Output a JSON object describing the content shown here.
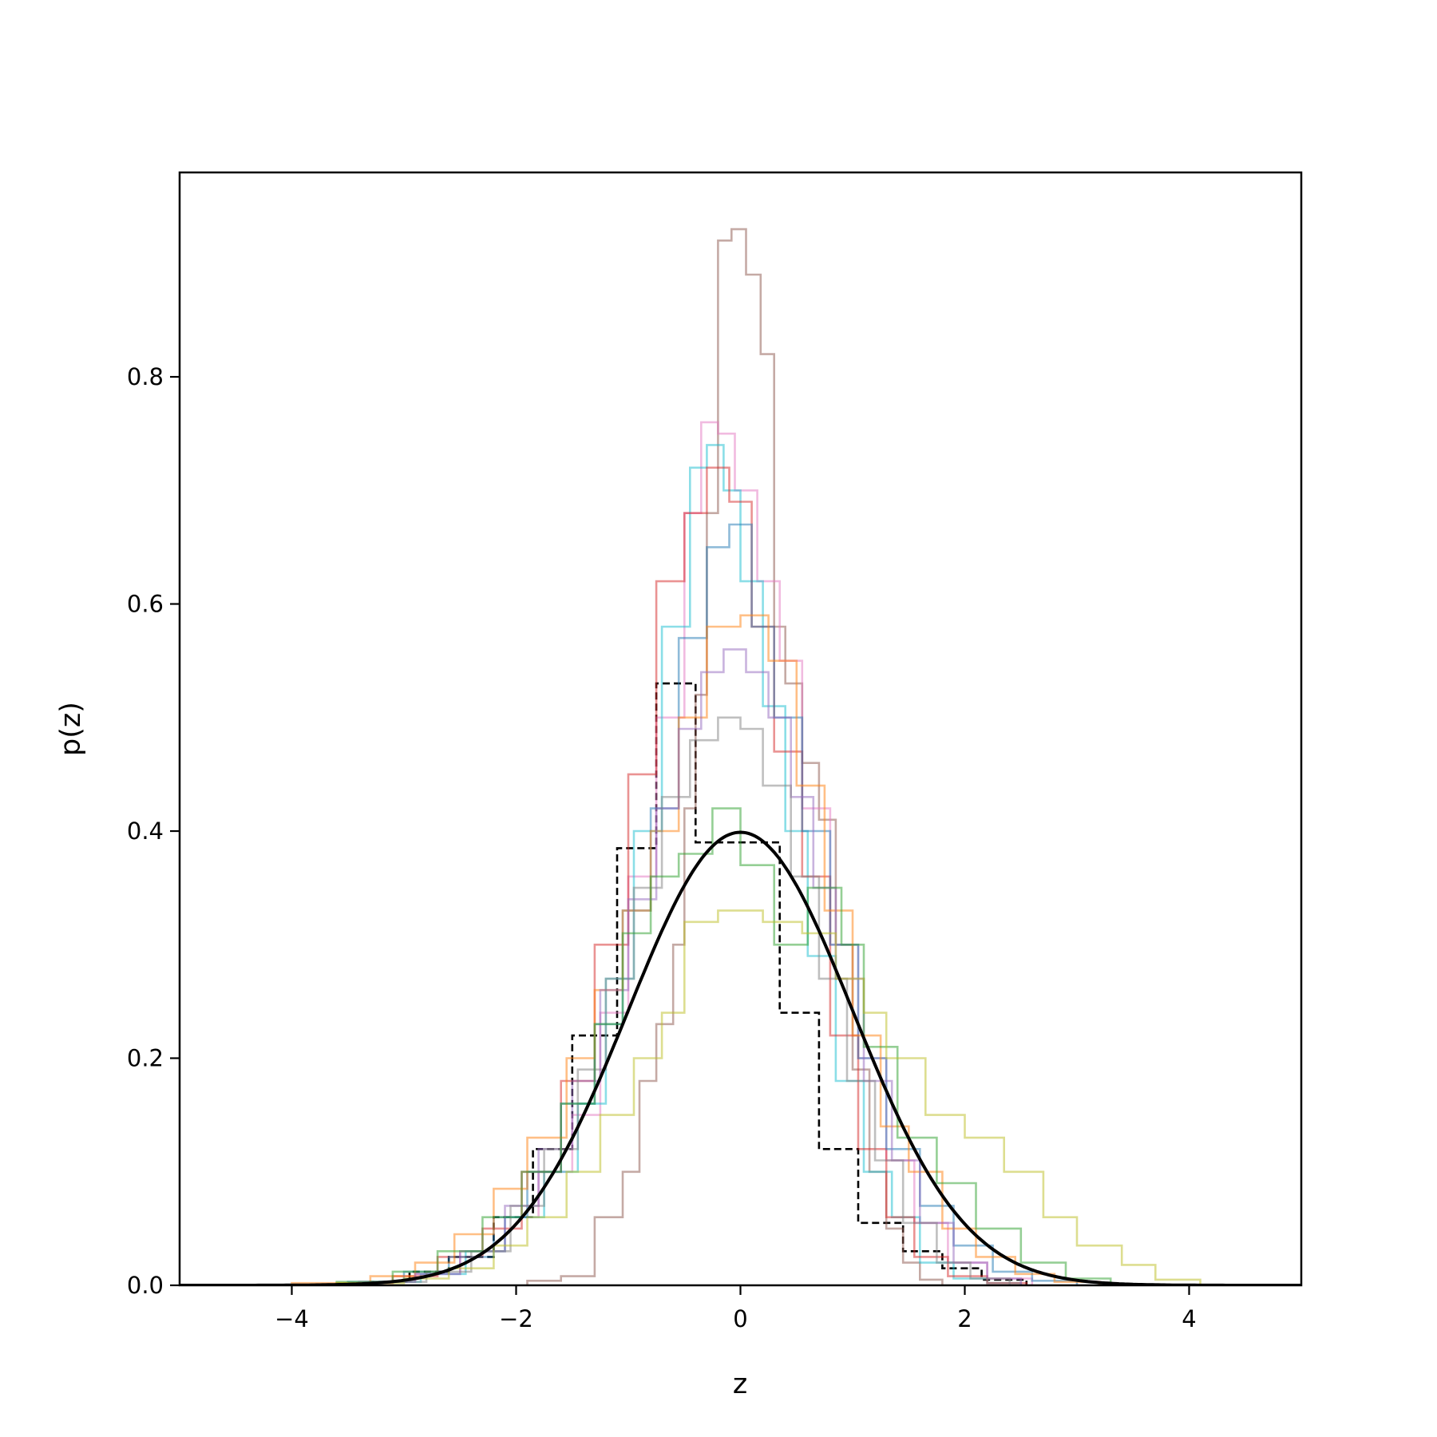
{
  "chart_data": {
    "type": "line",
    "title": "",
    "xlabel": "z",
    "ylabel": "p(z)",
    "xlim": [
      -5,
      5
    ],
    "ylim": [
      0,
      0.98
    ],
    "xticks": [
      -4,
      -2,
      0,
      2,
      4
    ],
    "xtick_labels": [
      "−4",
      "−2",
      "0",
      "2",
      "4"
    ],
    "yticks": [
      0.0,
      0.2,
      0.4,
      0.6,
      0.8
    ],
    "ytick_labels": [
      "0.0",
      "0.2",
      "0.4",
      "0.6",
      "0.8"
    ],
    "grid": false,
    "legend": "none",
    "normal_curve": {
      "mean": 0,
      "std": 1,
      "color": "#000000"
    },
    "step_series": [
      {
        "style": "dashed",
        "color": "#000000",
        "edges": [
          -3.3,
          -2.95,
          -2.6,
          -2.2,
          -1.85,
          -1.5,
          -1.1,
          -0.75,
          -0.4,
          0.35,
          0.7,
          1.05,
          1.45,
          1.8,
          2.15,
          2.55
        ],
        "values": [
          0.003,
          0.012,
          0.025,
          0.06,
          0.12,
          0.22,
          0.385,
          0.53,
          0.39,
          0.24,
          0.12,
          0.055,
          0.03,
          0.015,
          0.005
        ]
      },
      {
        "style": "solid",
        "color": "#8c564b",
        "edges": [
          -1.9,
          -1.6,
          -1.3,
          -1.05,
          -0.9,
          -0.75,
          -0.6,
          -0.5,
          -0.4,
          -0.3,
          -0.2,
          -0.08,
          0.05,
          0.18,
          0.3,
          0.4,
          0.55,
          0.7,
          0.85,
          1.0,
          1.15,
          1.3,
          1.45,
          1.6,
          1.8
        ],
        "values": [
          0.004,
          0.008,
          0.06,
          0.1,
          0.18,
          0.23,
          0.3,
          0.42,
          0.52,
          0.68,
          0.92,
          0.93,
          0.89,
          0.82,
          0.58,
          0.53,
          0.46,
          0.41,
          0.3,
          0.19,
          0.1,
          0.05,
          0.02,
          0.005
        ]
      },
      {
        "style": "solid",
        "color": "#e377c2",
        "edges": [
          -3.4,
          -2.9,
          -2.5,
          -2.1,
          -1.8,
          -1.5,
          -1.25,
          -1.0,
          -0.75,
          -0.5,
          -0.35,
          -0.2,
          -0.05,
          0.15,
          0.35,
          0.55,
          0.8,
          1.05,
          1.3,
          1.55,
          1.85,
          2.2,
          2.6
        ],
        "values": [
          0.003,
          0.01,
          0.03,
          0.06,
          0.1,
          0.15,
          0.24,
          0.36,
          0.5,
          0.68,
          0.76,
          0.75,
          0.7,
          0.62,
          0.55,
          0.42,
          0.3,
          0.2,
          0.11,
          0.055,
          0.02,
          0.006
        ]
      },
      {
        "style": "solid",
        "color": "#17becf",
        "edges": [
          -3.3,
          -2.85,
          -2.45,
          -2.1,
          -1.75,
          -1.45,
          -1.2,
          -0.95,
          -0.7,
          -0.45,
          -0.3,
          -0.15,
          0.0,
          0.2,
          0.4,
          0.6,
          0.85,
          1.1,
          1.35,
          1.6,
          1.9,
          2.2,
          2.5
        ],
        "values": [
          0.003,
          0.01,
          0.03,
          0.06,
          0.1,
          0.16,
          0.27,
          0.4,
          0.58,
          0.72,
          0.74,
          0.7,
          0.62,
          0.51,
          0.4,
          0.29,
          0.18,
          0.1,
          0.06,
          0.02,
          0.006,
          0.002
        ]
      },
      {
        "style": "solid",
        "color": "#d62728",
        "edges": [
          -3.6,
          -3.1,
          -2.7,
          -2.3,
          -1.95,
          -1.6,
          -1.3,
          -1.0,
          -0.75,
          -0.5,
          -0.3,
          -0.1,
          0.1,
          0.3,
          0.55,
          0.8,
          1.05,
          1.3,
          1.55,
          1.85,
          2.2,
          2.55
        ],
        "values": [
          0.002,
          0.008,
          0.025,
          0.05,
          0.1,
          0.18,
          0.3,
          0.45,
          0.62,
          0.68,
          0.72,
          0.69,
          0.58,
          0.47,
          0.36,
          0.22,
          0.12,
          0.06,
          0.025,
          0.008,
          0.002
        ]
      },
      {
        "style": "solid",
        "color": "#1f77b4",
        "edges": [
          -3.5,
          -3.0,
          -2.6,
          -2.2,
          -1.9,
          -1.6,
          -1.3,
          -1.05,
          -0.8,
          -0.55,
          -0.3,
          -0.1,
          0.1,
          0.3,
          0.55,
          0.8,
          1.05,
          1.3,
          1.6,
          1.9,
          2.25,
          2.6,
          3.0
        ],
        "values": [
          0.003,
          0.012,
          0.025,
          0.06,
          0.1,
          0.16,
          0.23,
          0.33,
          0.42,
          0.57,
          0.65,
          0.67,
          0.58,
          0.5,
          0.4,
          0.3,
          0.2,
          0.12,
          0.07,
          0.035,
          0.012,
          0.004
        ]
      },
      {
        "style": "solid",
        "color": "#ff7f0e",
        "edges": [
          -4.0,
          -3.3,
          -2.9,
          -2.55,
          -2.2,
          -1.9,
          -1.55,
          -1.3,
          -1.05,
          -0.8,
          -0.55,
          -0.3,
          0.0,
          0.25,
          0.5,
          0.75,
          1.0,
          1.25,
          1.5,
          1.8,
          2.1,
          2.45,
          2.8,
          3.2
        ],
        "values": [
          0.002,
          0.008,
          0.02,
          0.045,
          0.085,
          0.13,
          0.2,
          0.26,
          0.33,
          0.4,
          0.5,
          0.58,
          0.59,
          0.55,
          0.44,
          0.33,
          0.22,
          0.14,
          0.1,
          0.05,
          0.025,
          0.01,
          0.003
        ]
      },
      {
        "style": "solid",
        "color": "#9467bd",
        "edges": [
          -3.4,
          -2.9,
          -2.5,
          -2.1,
          -1.8,
          -1.5,
          -1.25,
          -1.0,
          -0.75,
          -0.55,
          -0.35,
          -0.15,
          0.05,
          0.25,
          0.45,
          0.65,
          0.85,
          1.1,
          1.35,
          1.6,
          1.9,
          2.2,
          2.5
        ],
        "values": [
          0.003,
          0.01,
          0.03,
          0.07,
          0.12,
          0.18,
          0.26,
          0.34,
          0.42,
          0.49,
          0.54,
          0.56,
          0.54,
          0.5,
          0.43,
          0.35,
          0.27,
          0.18,
          0.11,
          0.055,
          0.02,
          0.006
        ]
      },
      {
        "style": "solid",
        "color": "#7f7f7f",
        "edges": [
          -3.3,
          -2.8,
          -2.4,
          -2.05,
          -1.75,
          -1.45,
          -1.2,
          -0.95,
          -0.7,
          -0.45,
          -0.2,
          0.0,
          0.2,
          0.45,
          0.7,
          0.95,
          1.2,
          1.45,
          1.75,
          2.05,
          2.4
        ],
        "values": [
          0.003,
          0.012,
          0.03,
          0.07,
          0.12,
          0.19,
          0.27,
          0.35,
          0.43,
          0.48,
          0.5,
          0.49,
          0.44,
          0.36,
          0.27,
          0.18,
          0.11,
          0.055,
          0.02,
          0.006
        ]
      },
      {
        "style": "solid",
        "color": "#2ca02c",
        "edges": [
          -3.6,
          -3.1,
          -2.7,
          -2.3,
          -1.95,
          -1.6,
          -1.3,
          -1.05,
          -0.8,
          -0.55,
          -0.25,
          0.0,
          0.3,
          0.6,
          0.9,
          1.1,
          1.4,
          1.75,
          2.1,
          2.5,
          2.9,
          3.3
        ],
        "values": [
          0.003,
          0.012,
          0.03,
          0.06,
          0.1,
          0.16,
          0.23,
          0.31,
          0.36,
          0.38,
          0.42,
          0.37,
          0.3,
          0.35,
          0.3,
          0.21,
          0.13,
          0.09,
          0.05,
          0.02,
          0.006
        ]
      },
      {
        "style": "solid",
        "color": "#bcbd22",
        "edges": [
          -3.6,
          -3.0,
          -2.6,
          -2.2,
          -1.9,
          -1.55,
          -1.25,
          -0.95,
          -0.7,
          -0.5,
          -0.2,
          0.2,
          0.55,
          0.85,
          1.1,
          1.3,
          1.65,
          2.0,
          2.35,
          2.7,
          3.0,
          3.4,
          3.7,
          4.1
        ],
        "values": [
          0.002,
          0.006,
          0.015,
          0.035,
          0.06,
          0.1,
          0.15,
          0.2,
          0.24,
          0.32,
          0.33,
          0.32,
          0.31,
          0.27,
          0.24,
          0.2,
          0.15,
          0.13,
          0.1,
          0.06,
          0.035,
          0.018,
          0.005
        ]
      }
    ]
  }
}
